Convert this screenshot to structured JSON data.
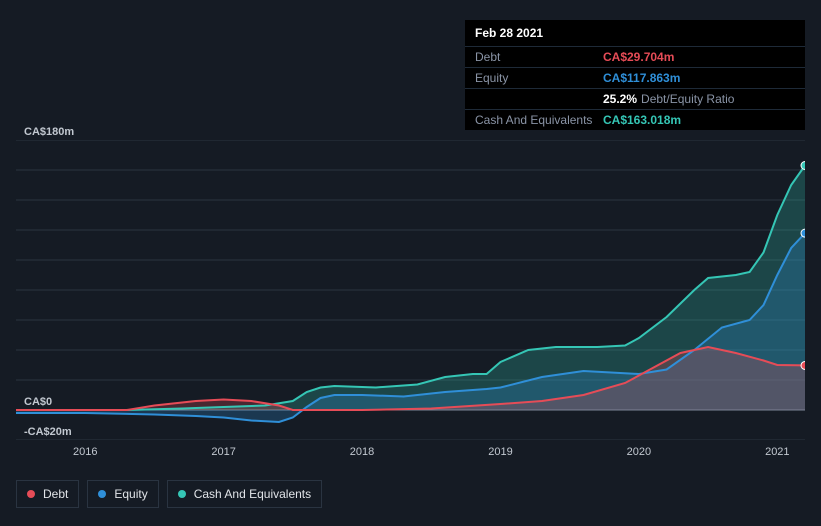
{
  "background_color": "#151b24",
  "tooltip": {
    "date": "Feb 28 2021",
    "rows": [
      {
        "label": "Debt",
        "value": "CA$29.704m",
        "color": "#e64c57"
      },
      {
        "label": "Equity",
        "value": "CA$117.863m",
        "color": "#2f8fd8"
      },
      {
        "label": "",
        "value": "25.2%",
        "suffix": "Debt/Equity Ratio",
        "color": "#ffffff",
        "is_ratio": true
      },
      {
        "label": "Cash And Equivalents",
        "value": "CA$163.018m",
        "color": "#35c6b5"
      }
    ]
  },
  "chart": {
    "type": "area-line",
    "x_domain": [
      2015.5,
      2021.2
    ],
    "x_ticks": [
      2016,
      2017,
      2018,
      2019,
      2020,
      2021
    ],
    "y_domain": [
      -20,
      180
    ],
    "y_ticks": [
      {
        "v": 180,
        "label": "CA$180m",
        "bold": false
      },
      {
        "v": 0,
        "label": "CA$0",
        "bold": true
      },
      {
        "v": -20,
        "label": "-CA$20m",
        "bold": false
      }
    ],
    "n_hlines": 10,
    "grid_color": "#2a3441",
    "zero_line_color": "#7a8596",
    "series": [
      {
        "key": "debt",
        "label": "Debt",
        "color": "#e64c57",
        "points": [
          [
            2015.5,
            0
          ],
          [
            2016.3,
            0
          ],
          [
            2016.5,
            3
          ],
          [
            2016.8,
            6
          ],
          [
            2017.0,
            7
          ],
          [
            2017.2,
            6
          ],
          [
            2017.4,
            3
          ],
          [
            2017.5,
            0
          ],
          [
            2017.7,
            0
          ],
          [
            2018.0,
            0
          ],
          [
            2018.5,
            1
          ],
          [
            2019.0,
            4
          ],
          [
            2019.3,
            6
          ],
          [
            2019.6,
            10
          ],
          [
            2019.9,
            18
          ],
          [
            2020.1,
            28
          ],
          [
            2020.3,
            38
          ],
          [
            2020.5,
            42
          ],
          [
            2020.7,
            38
          ],
          [
            2020.9,
            33
          ],
          [
            2021.0,
            30
          ],
          [
            2021.2,
            29.7
          ]
        ]
      },
      {
        "key": "equity",
        "label": "Equity",
        "color": "#2f8fd8",
        "points": [
          [
            2015.5,
            -2
          ],
          [
            2016.0,
            -2
          ],
          [
            2016.5,
            -3
          ],
          [
            2016.8,
            -4
          ],
          [
            2017.0,
            -5
          ],
          [
            2017.2,
            -7
          ],
          [
            2017.4,
            -8
          ],
          [
            2017.5,
            -5
          ],
          [
            2017.6,
            2
          ],
          [
            2017.7,
            8
          ],
          [
            2017.8,
            10
          ],
          [
            2018.0,
            10
          ],
          [
            2018.3,
            9
          ],
          [
            2018.6,
            12
          ],
          [
            2018.9,
            14
          ],
          [
            2019.0,
            15
          ],
          [
            2019.3,
            22
          ],
          [
            2019.6,
            26
          ],
          [
            2019.8,
            25
          ],
          [
            2020.0,
            24
          ],
          [
            2020.2,
            27
          ],
          [
            2020.4,
            40
          ],
          [
            2020.6,
            55
          ],
          [
            2020.8,
            60
          ],
          [
            2020.9,
            70
          ],
          [
            2021.0,
            90
          ],
          [
            2021.1,
            108
          ],
          [
            2021.2,
            117.9
          ]
        ]
      },
      {
        "key": "cash",
        "label": "Cash And Equivalents",
        "color": "#35c6b5",
        "points": [
          [
            2015.5,
            0
          ],
          [
            2016.3,
            0
          ],
          [
            2016.7,
            1
          ],
          [
            2017.0,
            2
          ],
          [
            2017.3,
            3
          ],
          [
            2017.5,
            6
          ],
          [
            2017.6,
            12
          ],
          [
            2017.7,
            15
          ],
          [
            2017.8,
            16
          ],
          [
            2018.1,
            15
          ],
          [
            2018.4,
            17
          ],
          [
            2018.6,
            22
          ],
          [
            2018.8,
            24
          ],
          [
            2018.9,
            24
          ],
          [
            2019.0,
            32
          ],
          [
            2019.2,
            40
          ],
          [
            2019.4,
            42
          ],
          [
            2019.7,
            42
          ],
          [
            2019.9,
            43
          ],
          [
            2020.0,
            48
          ],
          [
            2020.2,
            62
          ],
          [
            2020.4,
            80
          ],
          [
            2020.5,
            88
          ],
          [
            2020.7,
            90
          ],
          [
            2020.8,
            92
          ],
          [
            2020.9,
            105
          ],
          [
            2021.0,
            130
          ],
          [
            2021.1,
            150
          ],
          [
            2021.2,
            163.0
          ]
        ]
      }
    ]
  },
  "legend": [
    {
      "label": "Debt",
      "color": "#e64c57"
    },
    {
      "label": "Equity",
      "color": "#2f8fd8"
    },
    {
      "label": "Cash And Equivalents",
      "color": "#35c6b5"
    }
  ]
}
